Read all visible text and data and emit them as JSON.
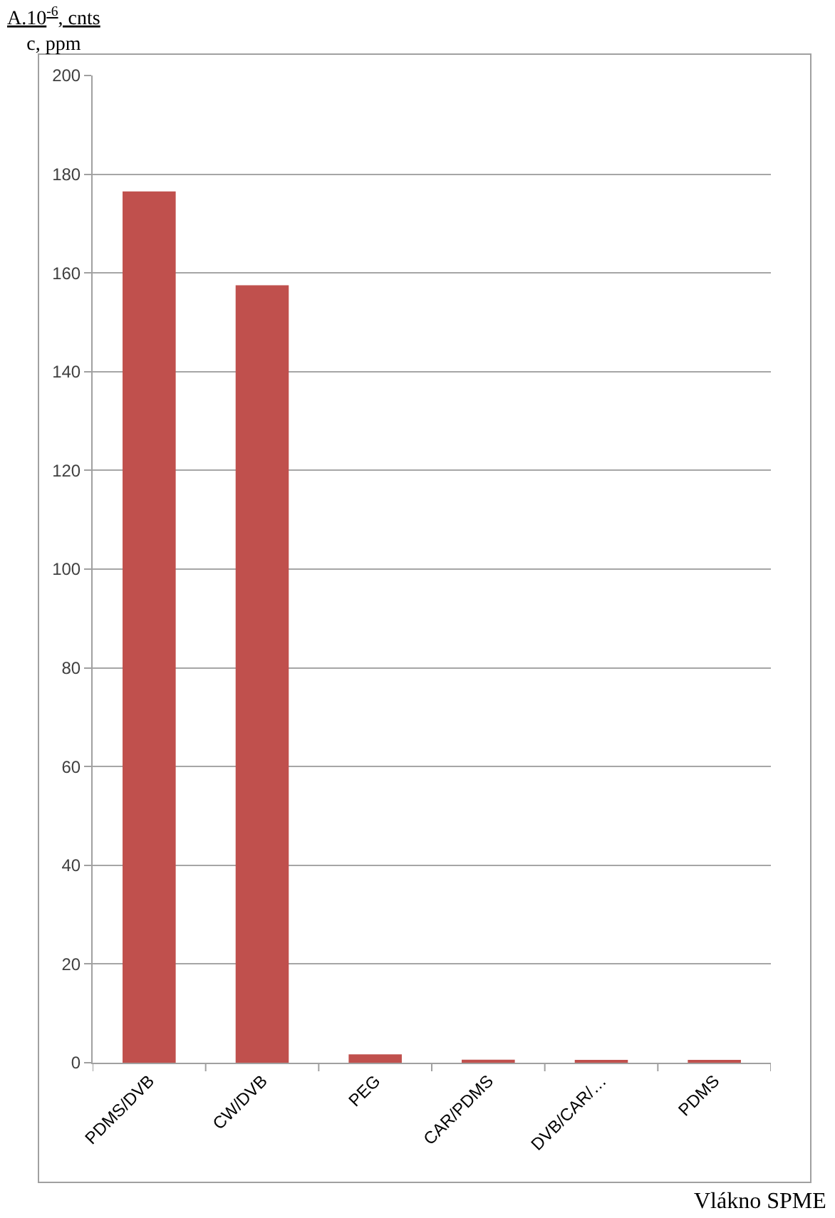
{
  "chart_data": {
    "type": "bar",
    "ylabel": "A.10$^{-6}$, cnts\nc, ppm",
    "xlabel": "Vlákno SPME",
    "categories": [
      "PDMS/DVB",
      "CW/DVB",
      "PEG",
      "CAR/PDMS",
      "DVB/CAR/…",
      "PDMS"
    ],
    "values": [
      176.5,
      157.5,
      1.7,
      0.6,
      0.5,
      0.5
    ],
    "color": "#c0504d",
    "ylim": [
      0,
      200
    ],
    "yticks": [
      0,
      20,
      40,
      60,
      80,
      100,
      120,
      140,
      160,
      180,
      200
    ],
    "grid": "y"
  }
}
